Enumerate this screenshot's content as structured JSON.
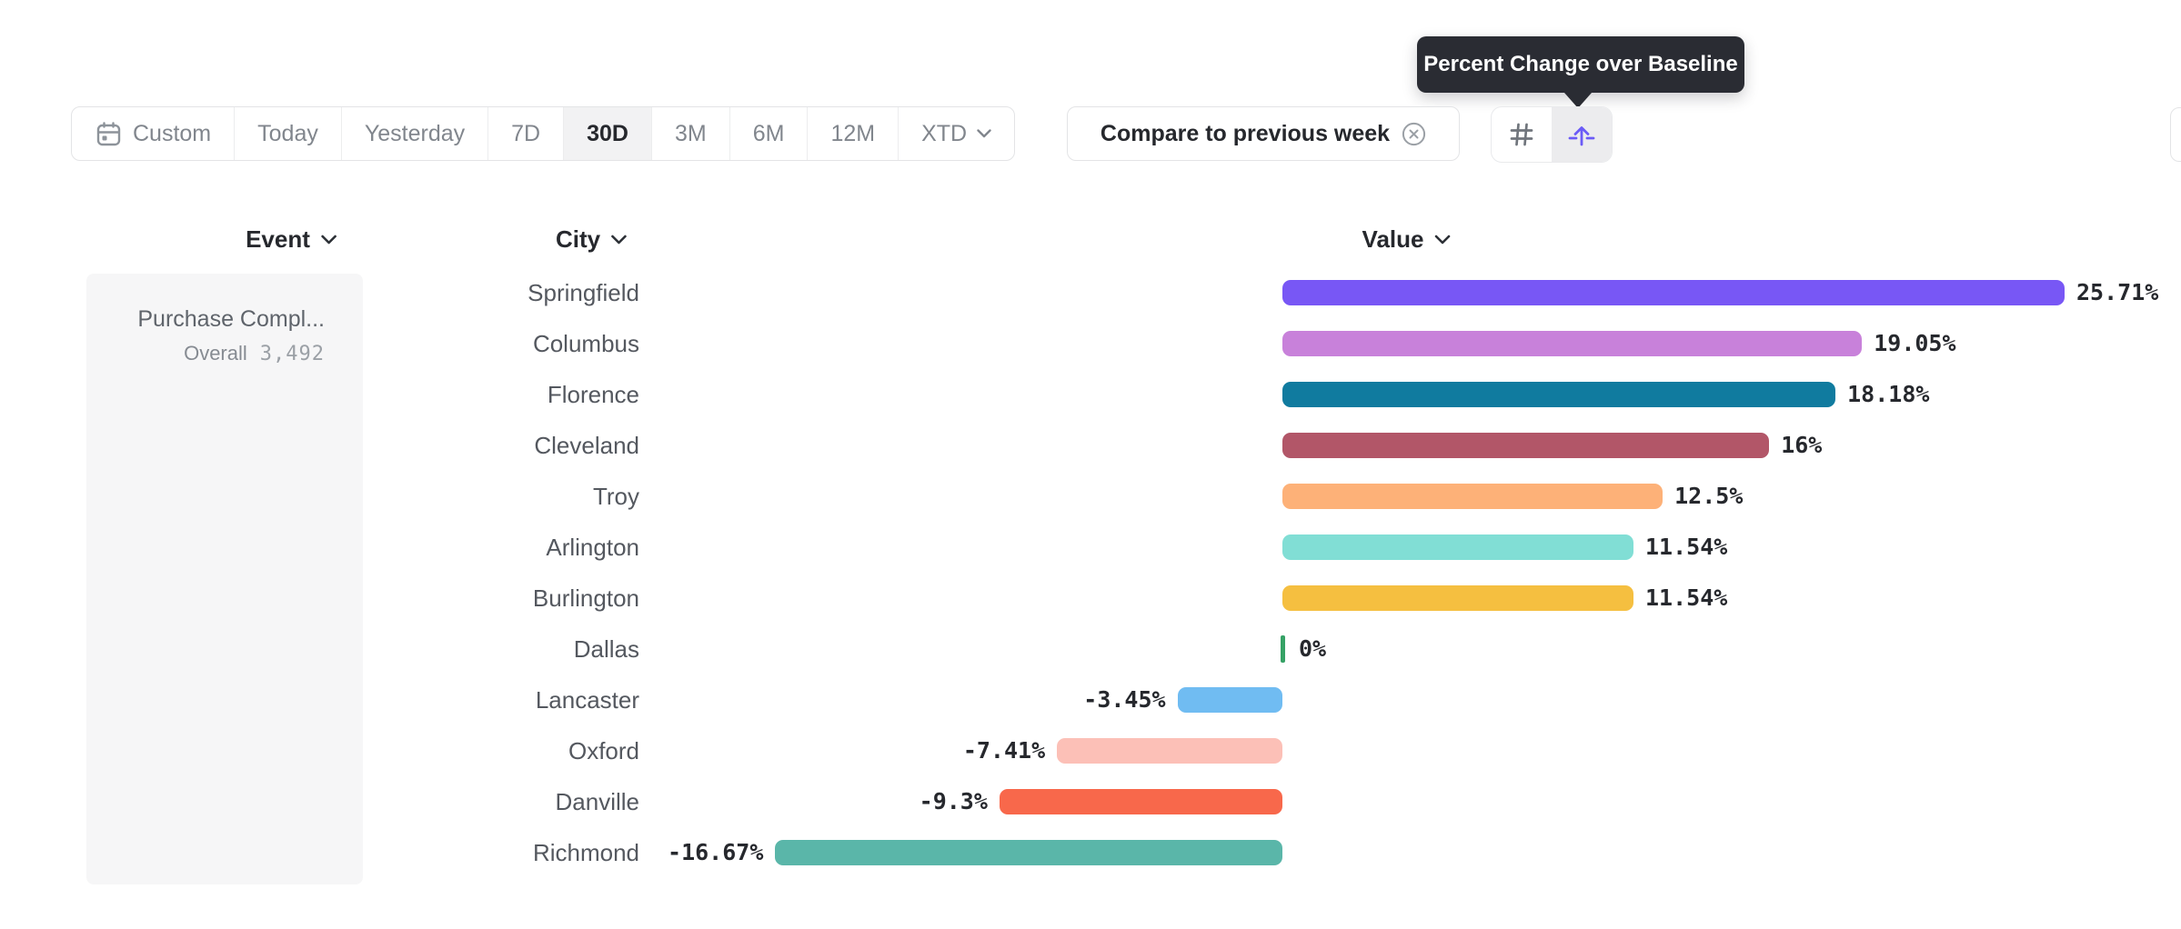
{
  "tooltip": {
    "text": "Percent Change over Baseline"
  },
  "toolbar": {
    "ranges": [
      {
        "label": "Custom",
        "icon": "calendar",
        "selected": false
      },
      {
        "label": "Today",
        "selected": false
      },
      {
        "label": "Yesterday",
        "selected": false
      },
      {
        "label": "7D",
        "selected": false
      },
      {
        "label": "30D",
        "selected": true
      },
      {
        "label": "3M",
        "selected": false
      },
      {
        "label": "6M",
        "selected": false
      },
      {
        "label": "12M",
        "selected": false
      },
      {
        "label": "XTD",
        "chevron": true,
        "selected": false
      }
    ],
    "compare_chip": {
      "label": "Compare to previous week",
      "close_icon": "x-circle-icon"
    },
    "view_buttons": [
      {
        "icon": "hash-grid-icon",
        "selected": false
      },
      {
        "icon": "baseline-arrow-icon",
        "selected": true
      }
    ]
  },
  "columns": {
    "event_label": "Event",
    "city_label": "City",
    "value_label": "Value"
  },
  "event_panel": {
    "event_name": "Purchase Compl...",
    "overall_label": "Overall",
    "overall_value": "3,492"
  },
  "chart_data": {
    "type": "bar",
    "orientation": "horizontal",
    "title": "Percent Change over Baseline",
    "xlabel": "Value",
    "ylabel": "City",
    "value_unit": "%",
    "xlim": [
      -16.67,
      25.71
    ],
    "grid": false,
    "categories": [
      "Springfield",
      "Columbus",
      "Florence",
      "Cleveland",
      "Troy",
      "Arlington",
      "Burlington",
      "Dallas",
      "Lancaster",
      "Oxford",
      "Danville",
      "Richmond"
    ],
    "values": [
      25.71,
      19.05,
      18.18,
      16,
      12.5,
      11.54,
      11.54,
      0,
      -3.45,
      -7.41,
      -9.3,
      -16.67
    ],
    "labels": [
      "25.71%",
      "19.05%",
      "18.18%",
      "16%",
      "12.5%",
      "11.54%",
      "11.54%",
      "0%",
      "-3.45%",
      "-7.41%",
      "-9.3%",
      "-16.67%"
    ],
    "colors": [
      "#7857f5",
      "#c881da",
      "#107b9f",
      "#b25668",
      "#fdb178",
      "#81ded5",
      "#f5bf40",
      "#36a266",
      "#70bcf2",
      "#fcc0b7",
      "#f8684b",
      "#5ab6a9"
    ],
    "zero_tick_color": "#36a266"
  },
  "theme": {
    "accent": "#6b5bf7",
    "tooltip_bg": "#2a2c33",
    "selected_bg": "#f2f2f3",
    "border": "#e3e4e6",
    "text_dark": "#26282d",
    "text_gray": "#81868d",
    "city_text": "#54585f",
    "panel_bg": "#f6f6f7"
  }
}
